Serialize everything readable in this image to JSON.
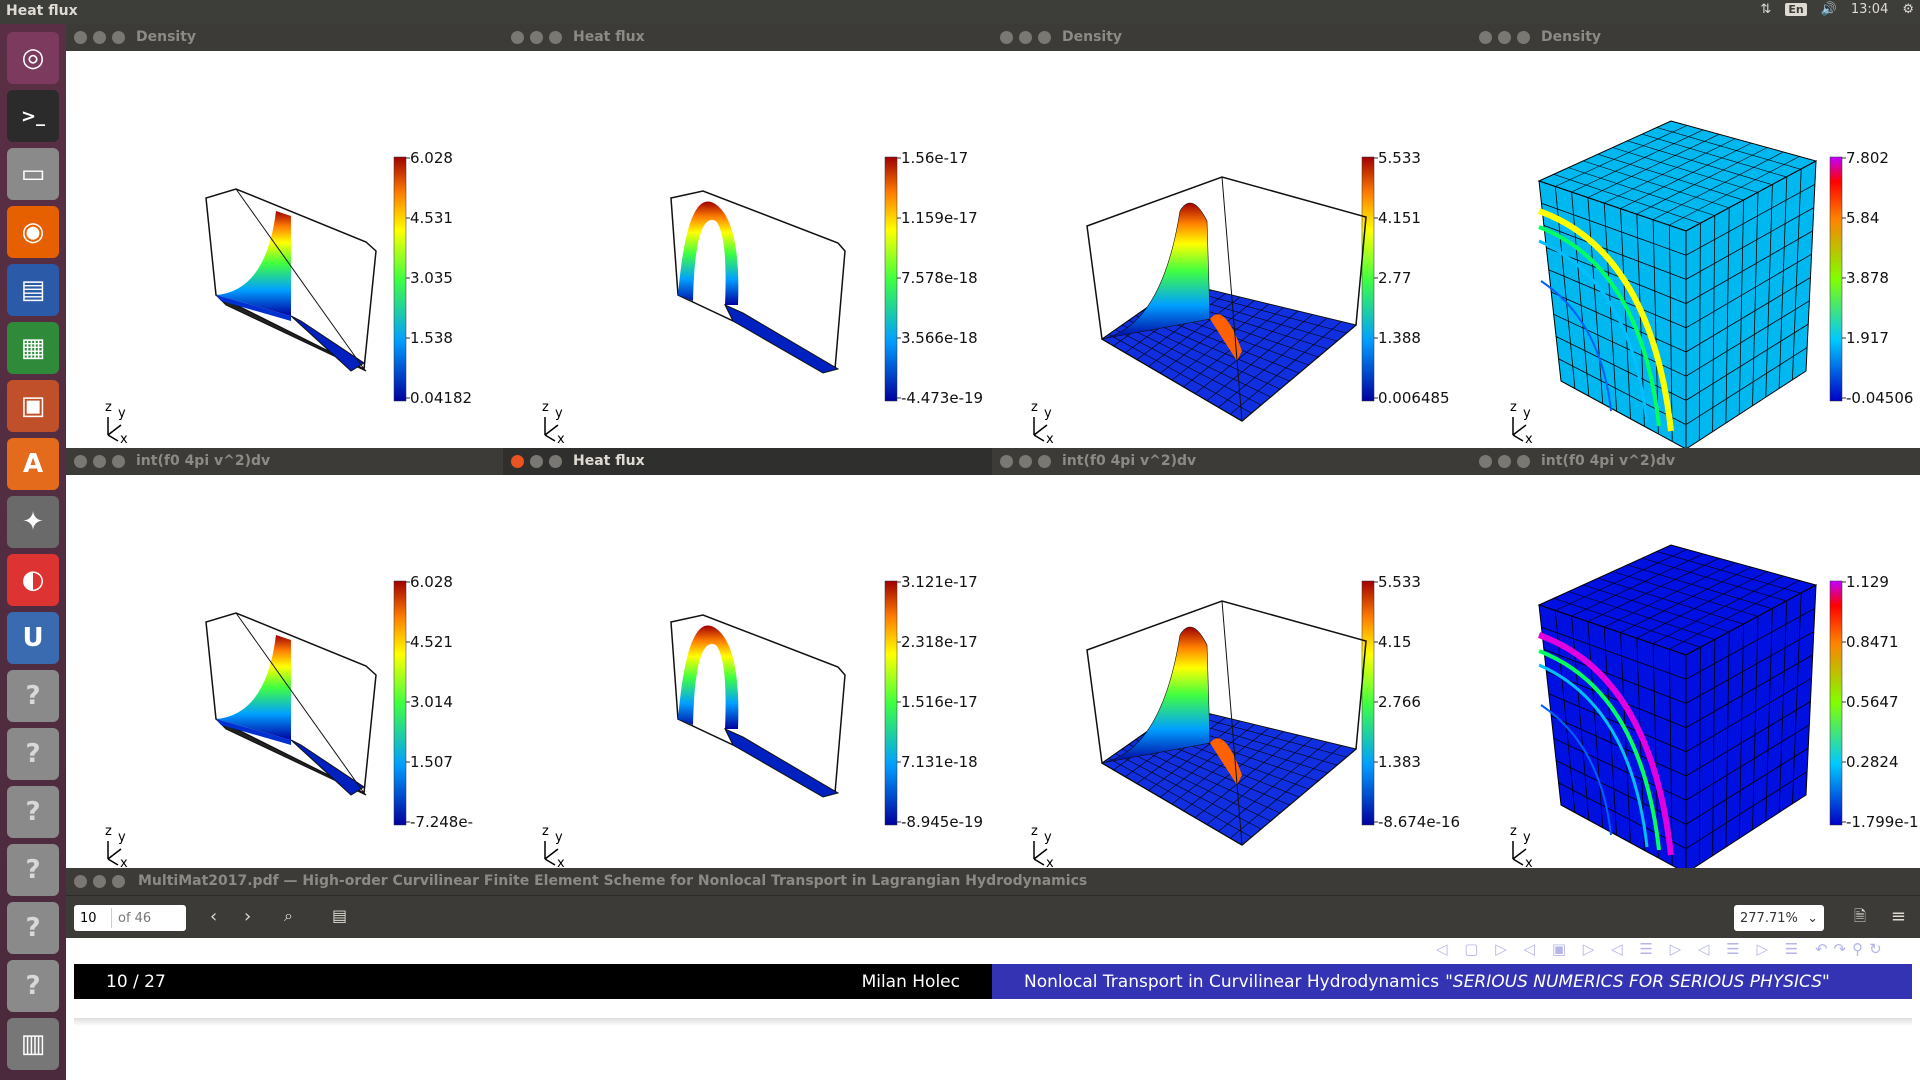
{
  "topbar": {
    "title": "Heat flux",
    "kb": "En",
    "time": "13:04"
  },
  "launcher": {
    "items": [
      "ubuntu-dash-icon",
      "terminal-icon",
      "files-icon",
      "firefox-icon",
      "writer-icon",
      "calc-icon",
      "impress-icon",
      "software-center-icon",
      "system-settings-icon",
      "evince-icon",
      "uget-icon",
      "unknown-app-icon",
      "unknown-app-icon",
      "unknown-app-icon",
      "unknown-app-icon",
      "unknown-app-icon",
      "unknown-app-icon",
      "trash-icon"
    ]
  },
  "windows": [
    {
      "title": "Density",
      "kind": "beam",
      "colorbar": [
        "6.028",
        "4.531",
        "3.035",
        "1.538",
        "0.04182"
      ]
    },
    {
      "title": "Heat flux",
      "kind": "arch",
      "colorbar": [
        "1.56e-17",
        "1.159e-17",
        "7.578e-18",
        "3.566e-18",
        "-4.473e-19"
      ]
    },
    {
      "title": "Density",
      "kind": "surface",
      "colorbar": [
        "5.533",
        "4.151",
        "2.77",
        "1.388",
        "0.006485"
      ]
    },
    {
      "title": "Density",
      "kind": "cube",
      "colorbar": [
        "7.802",
        "5.84",
        "3.878",
        "1.917",
        "-0.04506"
      ]
    },
    {
      "title": "int(f0 4pi v^2)dv",
      "kind": "beam",
      "colorbar": [
        "6.028",
        "4.521",
        "3.014",
        "1.507",
        "-7.248e-"
      ]
    },
    {
      "title": "Heat flux",
      "kind": "arch",
      "active": true,
      "colorbar": [
        "3.121e-17",
        "2.318e-17",
        "1.516e-17",
        "7.131e-18",
        "-8.945e-19"
      ]
    },
    {
      "title": "int(f0 4pi v^2)dv",
      "kind": "surface",
      "colorbar": [
        "5.533",
        "4.15",
        "2.766",
        "1.383",
        "-8.674e-16"
      ]
    },
    {
      "title": "int(f0 4pi v^2)dv",
      "kind": "cube2",
      "colorbar": [
        "1.129",
        "0.8471",
        "0.5647",
        "0.2824",
        "-1.799e-1"
      ]
    }
  ],
  "axes": {
    "z": "z",
    "y": "y",
    "x": "x"
  },
  "pdf": {
    "title": "MultiMat2017.pdf — High-order Curvilinear Finite Element Scheme for Nonlocal Transport in Lagrangian Hydrodynamics",
    "page_value": "10",
    "page_of": "of 46",
    "zoom": "277.71%",
    "footer_page": "10 / 27",
    "footer_author": "Milan Holec",
    "footer_title": "Nonlocal Transport in Curvilinear Hydrodynamics",
    "footer_motto": "\"SERIOUS NUMERICS FOR SERIOUS PHYSICS\""
  }
}
